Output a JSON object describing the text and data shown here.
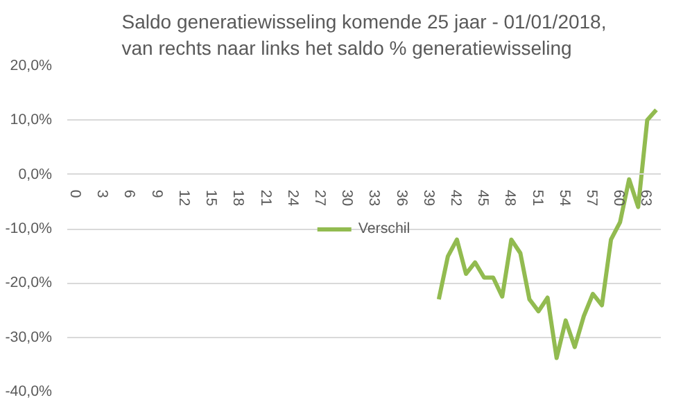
{
  "chart_data": {
    "type": "line",
    "title": "Saldo generatiewisseling komende 25 jaar - 01/01/2018, van rechts naar links  het saldo % generatiewisseling",
    "x": [
      40,
      41,
      42,
      43,
      44,
      45,
      46,
      47,
      48,
      49,
      50,
      51,
      52,
      53,
      54,
      55,
      56,
      57,
      58,
      59,
      60,
      61,
      62,
      63,
      64
    ],
    "series": [
      {
        "name": "Verschil",
        "color": "#92bb50",
        "values": [
          -23.0,
          -15.1,
          -12.0,
          -18.3,
          -16.2,
          -19.0,
          -19.0,
          -22.5,
          -12.0,
          -14.5,
          -23.0,
          -25.2,
          -22.7,
          -33.8,
          -26.9,
          -31.8,
          -26.1,
          -22.0,
          -24.1,
          -12.0,
          -8.8,
          -0.9,
          -6.0,
          10.0,
          11.9
        ]
      }
    ],
    "xlim": [
      -1,
      64.5
    ],
    "xticks": [
      0,
      3,
      6,
      9,
      12,
      15,
      18,
      21,
      24,
      27,
      30,
      33,
      36,
      39,
      42,
      45,
      48,
      51,
      54,
      57,
      60,
      63
    ],
    "ylim": [
      -40,
      20
    ],
    "yticks": [
      {
        "value": -40,
        "label": "-40,0%"
      },
      {
        "value": -30,
        "label": "-30,0%"
      },
      {
        "value": -20,
        "label": "-20,0%"
      },
      {
        "value": -10,
        "label": "-10,0%"
      },
      {
        "value": 0,
        "label": "0,0%"
      },
      {
        "value": 10,
        "label": "10,0%"
      },
      {
        "value": 20,
        "label": "20,0%"
      }
    ],
    "grid": "y",
    "legend": "center",
    "marker": "none",
    "line_style": "solid"
  }
}
